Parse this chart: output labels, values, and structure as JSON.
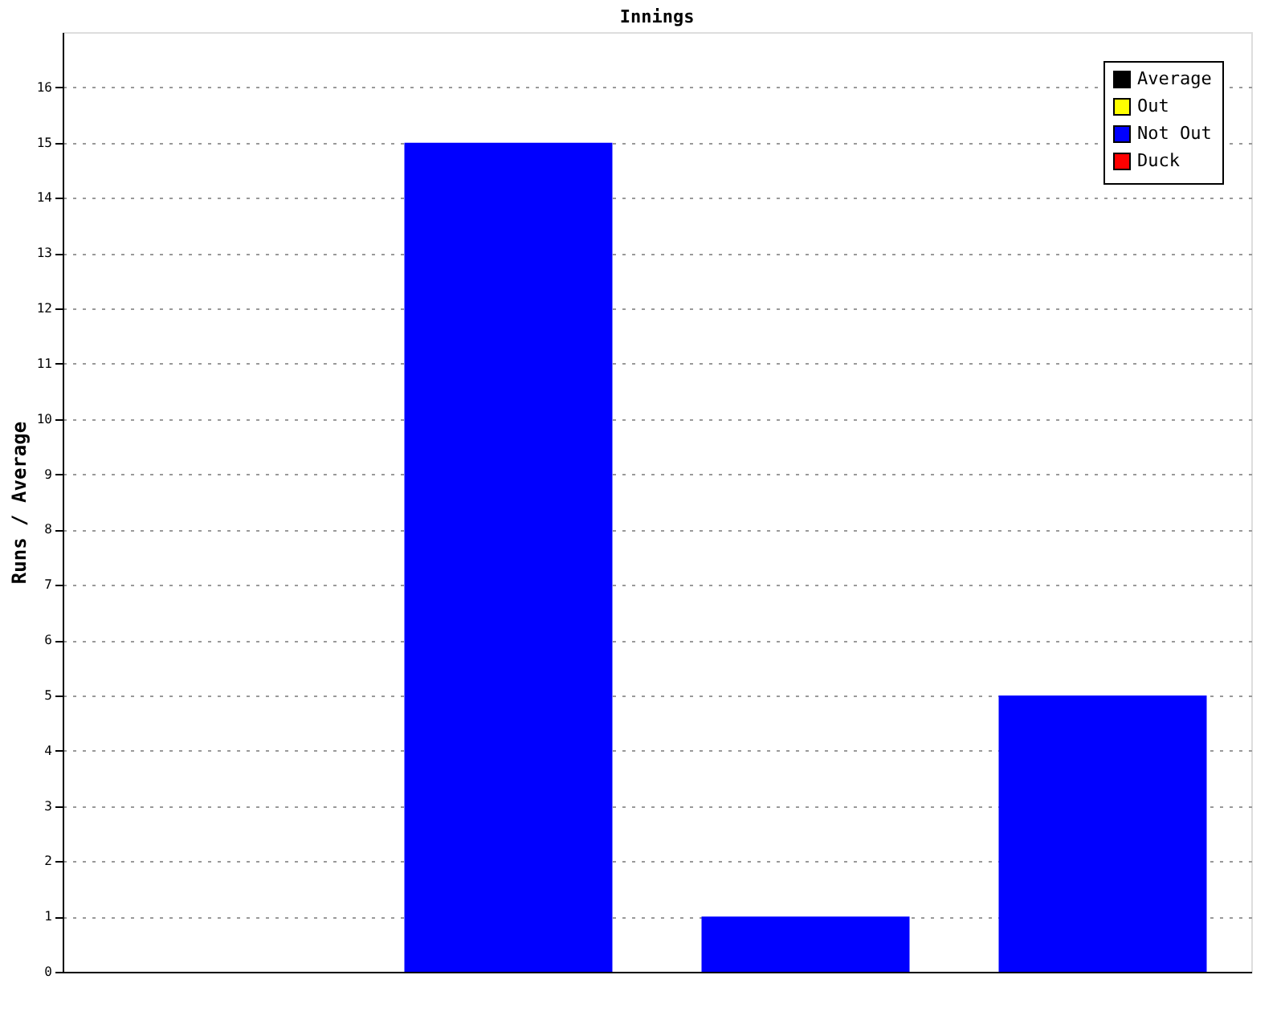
{
  "chart_data": {
    "type": "bar",
    "title": "Innings",
    "ylabel": "Runs / Average",
    "categories": [
      null,
      null,
      null,
      null
    ],
    "series": [
      {
        "name": "Average",
        "color": "#000000",
        "values": [
          null,
          null,
          null,
          null
        ]
      },
      {
        "name": "Out",
        "color": "#ffff00",
        "values": [
          null,
          null,
          null,
          null
        ]
      },
      {
        "name": "Not Out",
        "color": "#0000ff",
        "values": [
          null,
          15,
          1,
          5
        ]
      },
      {
        "name": "Duck",
        "color": "#ff0000",
        "values": [
          null,
          null,
          null,
          null
        ]
      }
    ],
    "ylim": [
      0,
      17
    ],
    "yticks": [
      0,
      1,
      2,
      3,
      4,
      5,
      6,
      7,
      8,
      9,
      10,
      11,
      12,
      13,
      14,
      15,
      16
    ],
    "grid": "y",
    "legend": "top right",
    "tick_labels": "y"
  }
}
